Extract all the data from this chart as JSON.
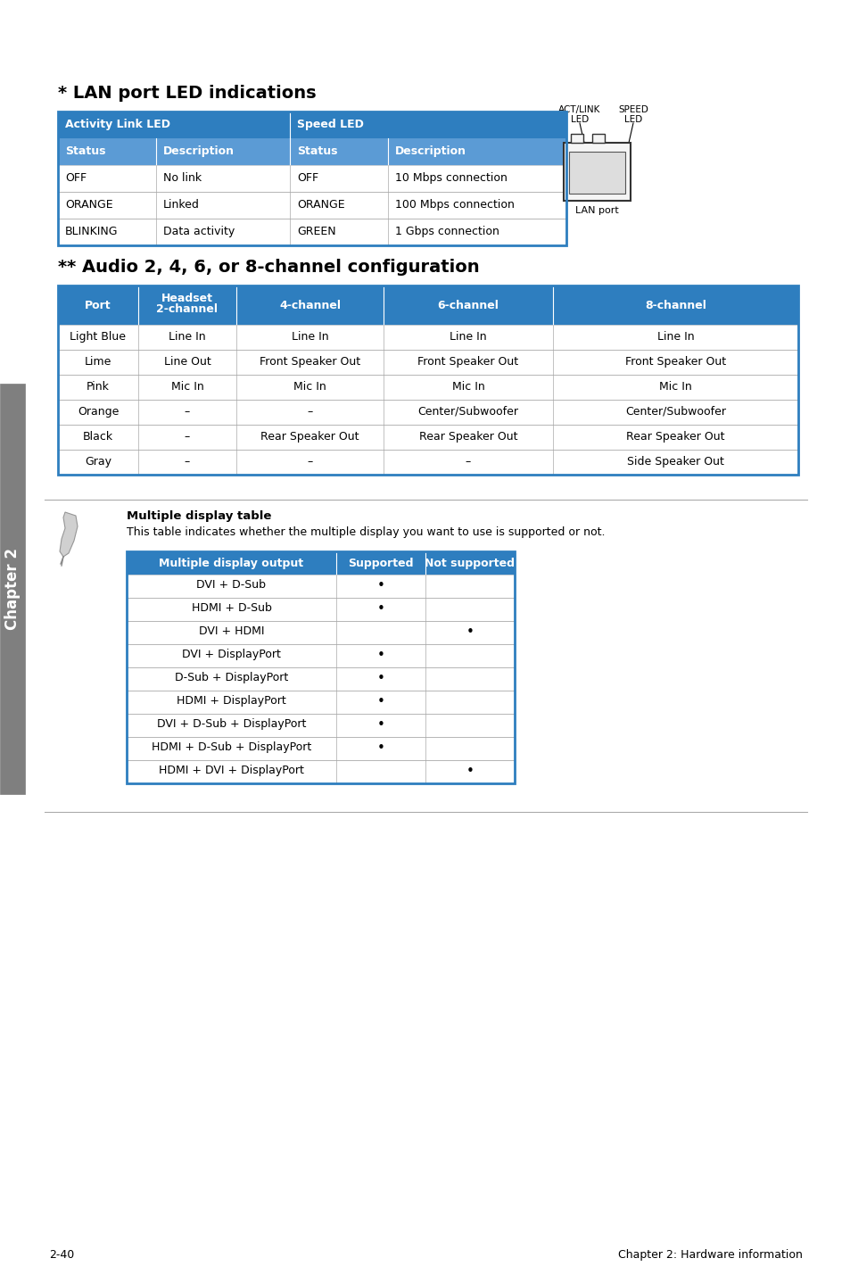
{
  "page_bg": "#ffffff",
  "header_blue": "#2e7ebf",
  "subheader_blue": "#5b9bd5",
  "border_blue": "#2e7ebf",
  "text_dark": "#000000",
  "text_white": "#ffffff",
  "sidebar_gray": "#7f7f7f",
  "lan_title": "* LAN port LED indications",
  "lan_subheaders": [
    "Status",
    "Description",
    "Status",
    "Description"
  ],
  "lan_rows": [
    [
      "OFF",
      "No link",
      "OFF",
      "10 Mbps connection"
    ],
    [
      "ORANGE",
      "Linked",
      "ORANGE",
      "100 Mbps connection"
    ],
    [
      "BLINKING",
      "Data activity",
      "GREEN",
      "1 Gbps connection"
    ]
  ],
  "audio_title": "** Audio 2, 4, 6, or 8-channel configuration",
  "audio_headers": [
    "Port",
    "Headset\n2-channel",
    "4-channel",
    "6-channel",
    "8-channel"
  ],
  "audio_rows": [
    [
      "Light Blue",
      "Line In",
      "Line In",
      "Line In",
      "Line In"
    ],
    [
      "Lime",
      "Line Out",
      "Front Speaker Out",
      "Front Speaker Out",
      "Front Speaker Out"
    ],
    [
      "Pink",
      "Mic In",
      "Mic In",
      "Mic In",
      "Mic In"
    ],
    [
      "Orange",
      "–",
      "–",
      "Center/Subwoofer",
      "Center/Subwoofer"
    ],
    [
      "Black",
      "–",
      "Rear Speaker Out",
      "Rear Speaker Out",
      "Rear Speaker Out"
    ],
    [
      "Gray",
      "–",
      "–",
      "–",
      "Side Speaker Out"
    ]
  ],
  "note_title": "Multiple display table",
  "note_text": "This table indicates whether the multiple display you want to use is supported or not.",
  "disp_headers": [
    "Multiple display output",
    "Supported",
    "Not supported"
  ],
  "disp_rows": [
    [
      "DVI + D-Sub",
      "•",
      ""
    ],
    [
      "HDMI + D-Sub",
      "•",
      ""
    ],
    [
      "DVI + HDMI",
      "",
      "•"
    ],
    [
      "DVI + DisplayPort",
      "•",
      ""
    ],
    [
      "D-Sub + DisplayPort",
      "•",
      ""
    ],
    [
      "HDMI + DisplayPort",
      "•",
      ""
    ],
    [
      "DVI + D-Sub + DisplayPort",
      "•",
      ""
    ],
    [
      "HDMI + D-Sub + DisplayPort",
      "•",
      ""
    ],
    [
      "HDMI + DVI + DisplayPort",
      "",
      "•"
    ]
  ],
  "footer_left": "2-40",
  "footer_right": "Chapter 2: Hardware information",
  "sidebar_text": "Chapter 2"
}
